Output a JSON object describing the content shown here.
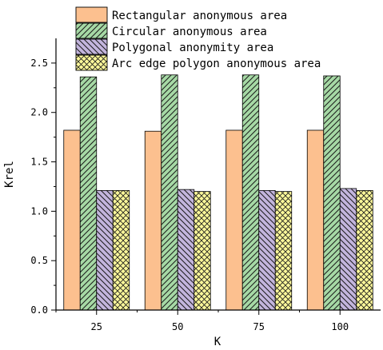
{
  "chart_data": {
    "type": "bar",
    "title": "",
    "xlabel": "K",
    "ylabel": "Krel",
    "categories": [
      "25",
      "50",
      "75",
      "100"
    ],
    "ylim": [
      0.0,
      2.75
    ],
    "yticks": [
      "0.0",
      "0.5",
      "1.0",
      "1.5",
      "2.0",
      "2.5"
    ],
    "legend_position": "top",
    "grid": false,
    "series": [
      {
        "name": "Rectangular anonymous area",
        "values": [
          1.82,
          1.81,
          1.82,
          1.82
        ],
        "color": "#fcc08f",
        "pattern": "none"
      },
      {
        "name": "Circular anonymous area",
        "values": [
          2.36,
          2.38,
          2.38,
          2.37
        ],
        "color": "#a6d9a5",
        "pattern": "diagonal-up"
      },
      {
        "name": "Polygonal anonymity area",
        "values": [
          1.21,
          1.22,
          1.21,
          1.23
        ],
        "color": "#c3b5dd",
        "pattern": "diagonal-down"
      },
      {
        "name": "Arc edge polygon anonymous area",
        "values": [
          1.21,
          1.2,
          1.2,
          1.21
        ],
        "color": "#fbf79a",
        "pattern": "crosshatch"
      }
    ]
  }
}
